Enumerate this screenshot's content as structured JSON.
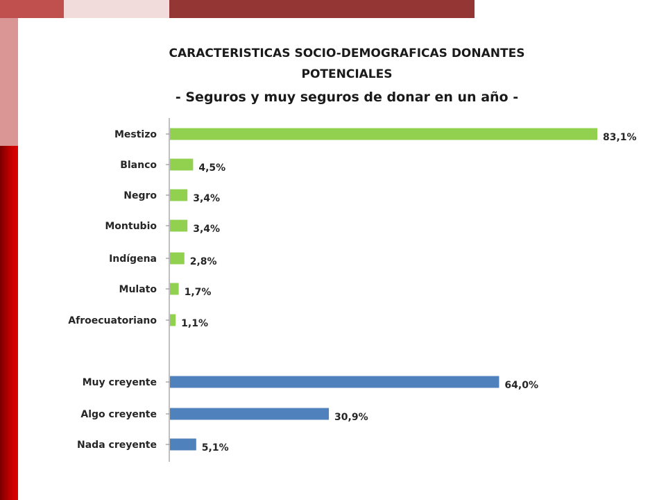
{
  "colors": {
    "ethnicity_bar": "#92d050",
    "religiosity_bar": "#4f81bd",
    "axis": "#808080"
  },
  "chart_data": {
    "type": "bar",
    "orientation": "horizontal",
    "title_lines": [
      "CARACTERISTICAS SOCIO-DEMOGRAFICAS DONANTES",
      "POTENCIALES"
    ],
    "subtitle": "- Seguros y muy seguros de donar en un año -",
    "xlabel": "",
    "ylabel": "",
    "xlim": [
      0,
      100
    ],
    "grid": false,
    "groups": [
      {
        "color": "#92d050",
        "categories": [
          "Mestizo",
          "Blanco",
          "Negro",
          "Montubio",
          "Indígena",
          "Mulato",
          "Afroecuatoriano"
        ],
        "values": [
          83.1,
          4.5,
          3.4,
          3.4,
          2.8,
          1.7,
          1.1
        ],
        "labels": [
          "83,1%",
          "4,5%",
          "3,4%",
          "3,4%",
          "2,8%",
          "1,7%",
          "1,1%"
        ]
      },
      {
        "color": "#4f81bd",
        "categories": [
          "Muy creyente",
          "Algo creyente",
          "Nada creyente"
        ],
        "values": [
          64.0,
          30.9,
          5.1
        ],
        "labels": [
          "64,0%",
          "30,9%",
          "5,1%"
        ]
      }
    ]
  }
}
